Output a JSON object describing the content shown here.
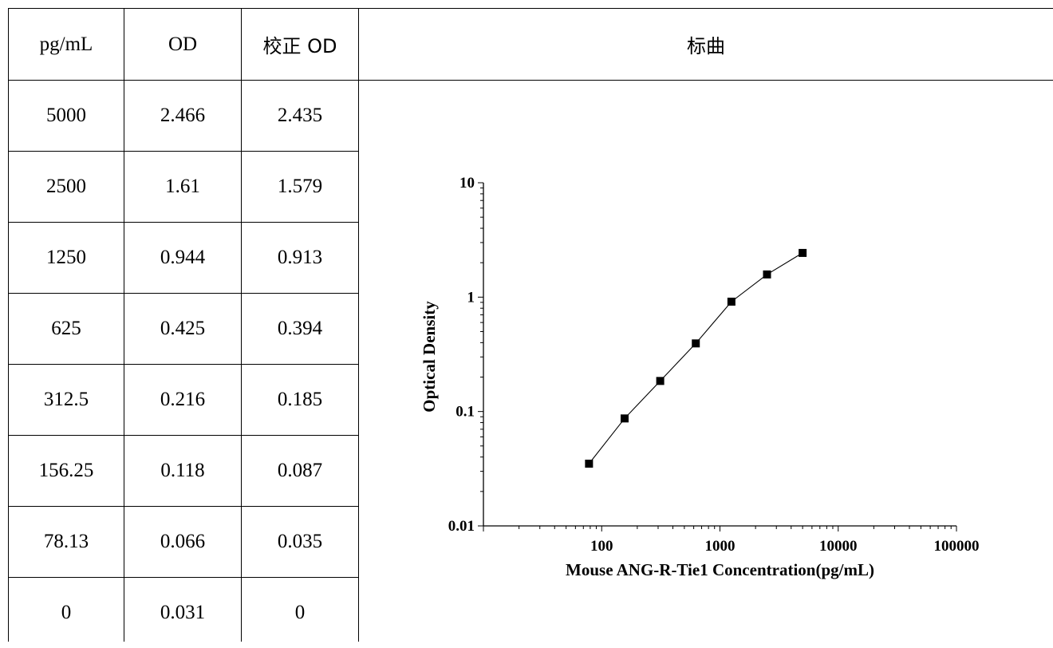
{
  "table": {
    "headers": {
      "conc": "pg/mL",
      "od": "OD",
      "corrected_od": "校正 OD",
      "curve": "标曲"
    },
    "rows": [
      {
        "conc": "5000",
        "od": "2.466",
        "corrected": "2.435"
      },
      {
        "conc": "2500",
        "od": "1.61",
        "corrected": "1.579"
      },
      {
        "conc": "1250",
        "od": "0.944",
        "corrected": "0.913"
      },
      {
        "conc": "625",
        "od": "0.425",
        "corrected": "0.394"
      },
      {
        "conc": "312.5",
        "od": "0.216",
        "corrected": "0.185"
      },
      {
        "conc": "156.25",
        "od": "0.118",
        "corrected": "0.087"
      },
      {
        "conc": "78.13",
        "od": "0.066",
        "corrected": "0.035"
      },
      {
        "conc": "0",
        "od": "0.031",
        "corrected": "0"
      }
    ]
  },
  "chart_data": {
    "type": "line",
    "xlabel": "Mouse ANG-R-Tie1 Concentration(pg/mL)",
    "ylabel": "Optical Density",
    "x_scale": "log",
    "y_scale": "log",
    "xlim": [
      10,
      100000
    ],
    "ylim": [
      0.01,
      10
    ],
    "x_ticks": [
      100,
      1000,
      10000,
      100000
    ],
    "x_tick_labels": [
      "100",
      "1000",
      "10000",
      "100000"
    ],
    "y_ticks": [
      0.01,
      0.1,
      1,
      10
    ],
    "y_tick_labels": [
      "0.01",
      "0.1",
      "1",
      "10"
    ],
    "grid": false,
    "marker": "square",
    "series": [
      {
        "x": [
          78.13,
          156.25,
          312.5,
          625,
          1250,
          2500,
          5000
        ],
        "y": [
          0.035,
          0.087,
          0.185,
          0.394,
          0.913,
          1.579,
          2.435
        ]
      }
    ]
  }
}
